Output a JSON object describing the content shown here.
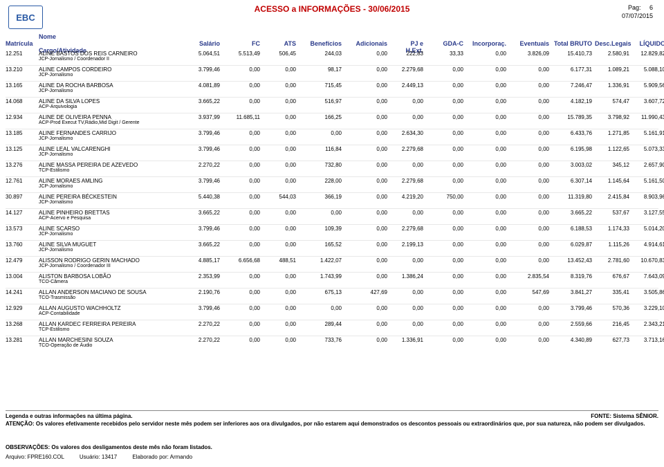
{
  "page": {
    "title": "ACESSO a INFORMAÇÕES - 30/06/2015",
    "pag_label": "Pag:",
    "pag_num": "6",
    "date_gen": "07/07/2015",
    "logo_text": "EBC"
  },
  "header": {
    "matricula": "Matrícula",
    "nome": "Nome",
    "cargo": "Cargo/Atividade",
    "salario": "Salário",
    "fc": "FC",
    "ats": "ATS",
    "beneficios": "Benefícios",
    "adicionais": "Adicionais",
    "pj": "PJ e H.Ext.",
    "gda": "GDA-C",
    "incorp": "Incorporaç.",
    "event": "Eventuais",
    "bruto": "Total BRUTO",
    "desc": "Desc.Legais",
    "liquido": "LÍQUIDO"
  },
  "rows": [
    {
      "mat": "12.251",
      "nome": "ALINE BASTOS DOS REIS CARNEIRO",
      "act": "JCP-Jornalismo / Coordenador II",
      "sal": "5.064,51",
      "fc": "5.513,49",
      "ats": "506,45",
      "ben": "244,03",
      "adc": "0,00",
      "pj": "222,83",
      "gda": "33,33",
      "inc": "0,00",
      "evt": "3.826,09",
      "bru": "15.410,73",
      "dsc": "2.580,91",
      "liq": "12.829,82"
    },
    {
      "mat": "13.210",
      "nome": "ALINE CAMPOS CORDEIRO",
      "act": "JCP-Jornalismo",
      "sal": "3.799,46",
      "fc": "0,00",
      "ats": "0,00",
      "ben": "98,17",
      "adc": "0,00",
      "pj": "2.279,68",
      "gda": "0,00",
      "inc": "0,00",
      "evt": "0,00",
      "bru": "6.177,31",
      "dsc": "1.089,21",
      "liq": "5.088,10"
    },
    {
      "mat": "13.165",
      "nome": "ALINE DA ROCHA BARBOSA",
      "act": "JCP-Jornalismo",
      "sal": "4.081,89",
      "fc": "0,00",
      "ats": "0,00",
      "ben": "715,45",
      "adc": "0,00",
      "pj": "2.449,13",
      "gda": "0,00",
      "inc": "0,00",
      "evt": "0,00",
      "bru": "7.246,47",
      "dsc": "1.336,91",
      "liq": "5.909,56"
    },
    {
      "mat": "14.068",
      "nome": "ALINE DA SILVA LOPES",
      "act": "ACP-Arquivologia",
      "sal": "3.665,22",
      "fc": "0,00",
      "ats": "0,00",
      "ben": "516,97",
      "adc": "0,00",
      "pj": "0,00",
      "gda": "0,00",
      "inc": "0,00",
      "evt": "0,00",
      "bru": "4.182,19",
      "dsc": "574,47",
      "liq": "3.607,72"
    },
    {
      "mat": "12.934",
      "nome": "ALINE DE OLIVEIRA PENNA",
      "act": "ACP-Prod Execut TV,Rádio,Mid Digit / Gerente",
      "sal": "3.937,99",
      "fc": "11.685,11",
      "ats": "0,00",
      "ben": "166,25",
      "adc": "0,00",
      "pj": "0,00",
      "gda": "0,00",
      "inc": "0,00",
      "evt": "0,00",
      "bru": "15.789,35",
      "dsc": "3.798,92",
      "liq": "11.990,43"
    },
    {
      "mat": "13.185",
      "nome": "ALINE FERNANDES CARRIJO",
      "act": "JCP-Jornalismo",
      "sal": "3.799,46",
      "fc": "0,00",
      "ats": "0,00",
      "ben": "0,00",
      "adc": "0,00",
      "pj": "2.634,30",
      "gda": "0,00",
      "inc": "0,00",
      "evt": "0,00",
      "bru": "6.433,76",
      "dsc": "1.271,85",
      "liq": "5.161,91"
    },
    {
      "mat": "13.125",
      "nome": "ALINE LEAL VALCARENGHI",
      "act": "JCP-Jornalismo",
      "sal": "3.799,46",
      "fc": "0,00",
      "ats": "0,00",
      "ben": "116,84",
      "adc": "0,00",
      "pj": "2.279,68",
      "gda": "0,00",
      "inc": "0,00",
      "evt": "0,00",
      "bru": "6.195,98",
      "dsc": "1.122,65",
      "liq": "5.073,33"
    },
    {
      "mat": "13.276",
      "nome": "ALINE MASSA PEREIRA DE AZEVEDO",
      "act": "TCP-Estilismo",
      "sal": "2.270,22",
      "fc": "0,00",
      "ats": "0,00",
      "ben": "732,80",
      "adc": "0,00",
      "pj": "0,00",
      "gda": "0,00",
      "inc": "0,00",
      "evt": "0,00",
      "bru": "3.003,02",
      "dsc": "345,12",
      "liq": "2.657,90"
    },
    {
      "mat": "12.761",
      "nome": "ALINE MORAES AMLING",
      "act": "JCP-Jornalismo",
      "sal": "3.799,46",
      "fc": "0,00",
      "ats": "0,00",
      "ben": "228,00",
      "adc": "0,00",
      "pj": "2.279,68",
      "gda": "0,00",
      "inc": "0,00",
      "evt": "0,00",
      "bru": "6.307,14",
      "dsc": "1.145,64",
      "liq": "5.161,50"
    },
    {
      "mat": "30.897",
      "nome": "ALINE PEREIRA BÉCKESTEIN",
      "act": "JCP-Jornalismo",
      "sal": "5.440,38",
      "fc": "0,00",
      "ats": "544,03",
      "ben": "366,19",
      "adc": "0,00",
      "pj": "4.219,20",
      "gda": "750,00",
      "inc": "0,00",
      "evt": "0,00",
      "bru": "11.319,80",
      "dsc": "2.415,84",
      "liq": "8.903,96"
    },
    {
      "mat": "14.127",
      "nome": "ALINE PINHEIRO BRETTAS",
      "act": "ACP-Acervo e Pesquisa",
      "sal": "3.665,22",
      "fc": "0,00",
      "ats": "0,00",
      "ben": "0,00",
      "adc": "0,00",
      "pj": "0,00",
      "gda": "0,00",
      "inc": "0,00",
      "evt": "0,00",
      "bru": "3.665,22",
      "dsc": "537,67",
      "liq": "3.127,55"
    },
    {
      "mat": "13.573",
      "nome": "ALINE SCARSO",
      "act": "JCP-Jornalismo",
      "sal": "3.799,46",
      "fc": "0,00",
      "ats": "0,00",
      "ben": "109,39",
      "adc": "0,00",
      "pj": "2.279,68",
      "gda": "0,00",
      "inc": "0,00",
      "evt": "0,00",
      "bru": "6.188,53",
      "dsc": "1.174,33",
      "liq": "5.014,20"
    },
    {
      "mat": "13.760",
      "nome": "ALINE SILVA MUGUET",
      "act": "JCP-Jornalismo",
      "sal": "3.665,22",
      "fc": "0,00",
      "ats": "0,00",
      "ben": "165,52",
      "adc": "0,00",
      "pj": "2.199,13",
      "gda": "0,00",
      "inc": "0,00",
      "evt": "0,00",
      "bru": "6.029,87",
      "dsc": "1.115,26",
      "liq": "4.914,61"
    },
    {
      "mat": "12.479",
      "nome": "ALISSON RODRIGO GERIN MACHADO",
      "act": "JCP-Jornalismo / Coordenador III",
      "sal": "4.885,17",
      "fc": "6.656,68",
      "ats": "488,51",
      "ben": "1.422,07",
      "adc": "0,00",
      "pj": "0,00",
      "gda": "0,00",
      "inc": "0,00",
      "evt": "0,00",
      "bru": "13.452,43",
      "dsc": "2.781,60",
      "liq": "10.670,83"
    },
    {
      "mat": "13.004",
      "nome": "ALISTON BARBOSA LOBÃO",
      "act": "TCO-Câmera",
      "sal": "2.353,99",
      "fc": "0,00",
      "ats": "0,00",
      "ben": "1.743,99",
      "adc": "0,00",
      "pj": "1.386,24",
      "gda": "0,00",
      "inc": "0,00",
      "evt": "2.835,54",
      "bru": "8.319,76",
      "dsc": "676,67",
      "liq": "7.643,09"
    },
    {
      "mat": "14.241",
      "nome": "ALLAN ANDERSON MACIANO DE SOUSA",
      "act": "TCO-Trasmissão",
      "sal": "2.190,76",
      "fc": "0,00",
      "ats": "0,00",
      "ben": "675,13",
      "adc": "427,69",
      "pj": "0,00",
      "gda": "0,00",
      "inc": "0,00",
      "evt": "547,69",
      "bru": "3.841,27",
      "dsc": "335,41",
      "liq": "3.505,86"
    },
    {
      "mat": "12.929",
      "nome": "ALLAN AUGUSTO WACHHOLTZ",
      "act": "ACP-Contabilidade",
      "sal": "3.799,46",
      "fc": "0,00",
      "ats": "0,00",
      "ben": "0,00",
      "adc": "0,00",
      "pj": "0,00",
      "gda": "0,00",
      "inc": "0,00",
      "evt": "0,00",
      "bru": "3.799,46",
      "dsc": "570,36",
      "liq": "3.229,10"
    },
    {
      "mat": "13.268",
      "nome": "ALLAN KARDEC FERREIRA PEREIRA",
      "act": "TCP-Estilismo",
      "sal": "2.270,22",
      "fc": "0,00",
      "ats": "0,00",
      "ben": "289,44",
      "adc": "0,00",
      "pj": "0,00",
      "gda": "0,00",
      "inc": "0,00",
      "evt": "0,00",
      "bru": "2.559,66",
      "dsc": "216,45",
      "liq": "2.343,21"
    },
    {
      "mat": "13.281",
      "nome": "ALLAN MARCHESINI SOUZA",
      "act": "TCO-Operação de Áudio",
      "sal": "2.270,22",
      "fc": "0,00",
      "ats": "0,00",
      "ben": "733,76",
      "adc": "0,00",
      "pj": "1.336,91",
      "gda": "0,00",
      "inc": "0,00",
      "evt": "0,00",
      "bru": "4.340,89",
      "dsc": "627,73",
      "liq": "3.713,16"
    }
  ],
  "footer": {
    "legend": "Legenda e outras informações na última página.",
    "atencao": "ATENÇÃO: Os valores efetivamente recebidos pelo servidor neste mês podem ser inferiores aos ora divulgados, por não estarem aqui demonstrados os descontos pessoais ou extraordinários que, por sua natureza, não podem ser divulgados.",
    "fonte": "FONTE: Sistema SÊNIOR.",
    "obs": "OBSERVAÇÕES: Os valores dos desligamentos deste mês não foram listados.",
    "arquivo_label": "Arquivo: ",
    "arquivo": "FPRE160.COL",
    "usuario_label": "Usuário: ",
    "usuario": "13417",
    "elab_label": "Elaborado por: ",
    "elab": "Armando"
  },
  "style": {
    "title_color": "#c00000",
    "header_color": "#2a3a8a",
    "logo_border": "#2a5aa5",
    "row_border": "#e8e8e8",
    "font_sizes": {
      "title": 12,
      "header": 9,
      "cell": 8,
      "act": 7,
      "footer": 8
    }
  }
}
